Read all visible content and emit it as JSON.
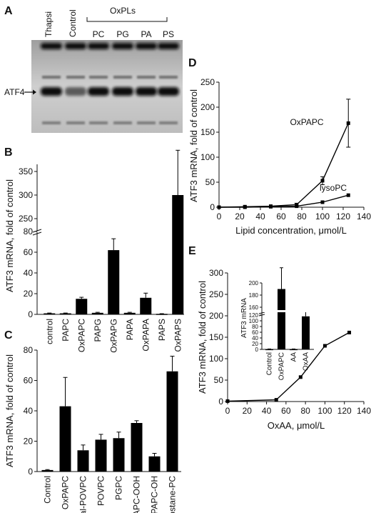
{
  "panel_labels": {
    "A": "A",
    "B": "B",
    "C": "C",
    "D": "D",
    "E": "E"
  },
  "blot": {
    "lane_labels": [
      "Thapsi",
      "Control",
      "PC",
      "PG",
      "PA",
      "PS"
    ],
    "group_label": "OxPLs",
    "band_label": "ATF4"
  },
  "chart_data": [
    {
      "id": "B",
      "type": "bar",
      "ylabel": "ATF3 mRNA, fold of control",
      "categories": [
        "control",
        "PAPC",
        "OxPAPC",
        "PAPG",
        "OxPAPG",
        "PAPA",
        "OxPAPA",
        "PAPS",
        "OxPAPS"
      ],
      "values": [
        1,
        1,
        15,
        1.5,
        62,
        1.5,
        16,
        0.5,
        300
      ],
      "errors": [
        0.3,
        0.3,
        1.5,
        0.5,
        11,
        0.5,
        4.5,
        0.2,
        95
      ],
      "yticks_lower": [
        "0",
        "20",
        "40",
        "60",
        "80"
      ],
      "yticks_upper": [
        "250",
        "300",
        "350"
      ],
      "axis_break": [
        80,
        250
      ]
    },
    {
      "id": "C",
      "type": "bar",
      "ylabel": "ATF3 mRNA, fold of control",
      "categories": [
        "Control",
        "OxPAPC",
        "acetal-POVPC",
        "POVPC",
        "PGPC",
        "PAPC-OOH",
        "PAPC-OH",
        "Isoprostane-PC"
      ],
      "values": [
        1,
        43,
        14,
        21,
        22,
        32,
        10,
        66
      ],
      "errors": [
        0.3,
        19,
        3.5,
        3.5,
        4,
        1.5,
        2,
        10
      ],
      "yticks": [
        "0",
        "20",
        "40",
        "60",
        "80"
      ],
      "ylim": [
        0,
        80
      ]
    },
    {
      "id": "D",
      "type": "line",
      "ylabel": "ATF3 mRNA, fold of control",
      "xlabel": "Lipid concentration, μmol/L",
      "xticks": [
        "0",
        "20",
        "40",
        "60",
        "80",
        "100",
        "120",
        "140"
      ],
      "yticks": [
        "0",
        "50",
        "100",
        "150",
        "200",
        "250"
      ],
      "xlim": [
        0,
        140
      ],
      "ylim": [
        0,
        250
      ],
      "series": [
        {
          "name": "OxPAPC",
          "x": [
            0,
            25,
            50,
            75,
            100,
            125
          ],
          "y": [
            0,
            1,
            2,
            5,
            53,
            168
          ],
          "err": [
            0,
            0,
            0,
            3,
            8,
            48
          ]
        },
        {
          "name": "lysoPC",
          "x": [
            0,
            25,
            50,
            75,
            100,
            125
          ],
          "y": [
            0,
            0,
            1,
            2,
            10,
            24
          ],
          "err": [
            0,
            0,
            0,
            0,
            0,
            0
          ]
        }
      ]
    },
    {
      "id": "E",
      "type": "line",
      "ylabel": "ATF3 mRNA, fold of control",
      "xlabel": "OxAA, μmol/L",
      "xticks": [
        "0",
        "20",
        "40",
        "60",
        "80",
        "100",
        "120",
        "140"
      ],
      "yticks": [
        "0",
        "50",
        "100",
        "150",
        "200",
        "250",
        "300"
      ],
      "xlim": [
        0,
        140
      ],
      "ylim": [
        0,
        300
      ],
      "series": [
        {
          "name": "",
          "x": [
            0,
            50,
            75,
            100,
            125
          ],
          "y": [
            1,
            4,
            57,
            130,
            161
          ],
          "err": [
            0,
            0,
            0,
            0,
            0
          ]
        }
      ],
      "inset": {
        "type": "bar",
        "ylabel": "ATF3 mRNA",
        "categories": [
          "Control",
          "OxPAPC",
          "AA",
          "OxAA"
        ],
        "values": [
          1,
          190,
          1,
          145
        ],
        "errors": [
          0.5,
          35,
          0.5,
          8
        ],
        "yticks": [
          "0",
          "20",
          "40",
          "60",
          "80",
          "100",
          "120",
          "160",
          "180",
          "200"
        ]
      }
    }
  ]
}
